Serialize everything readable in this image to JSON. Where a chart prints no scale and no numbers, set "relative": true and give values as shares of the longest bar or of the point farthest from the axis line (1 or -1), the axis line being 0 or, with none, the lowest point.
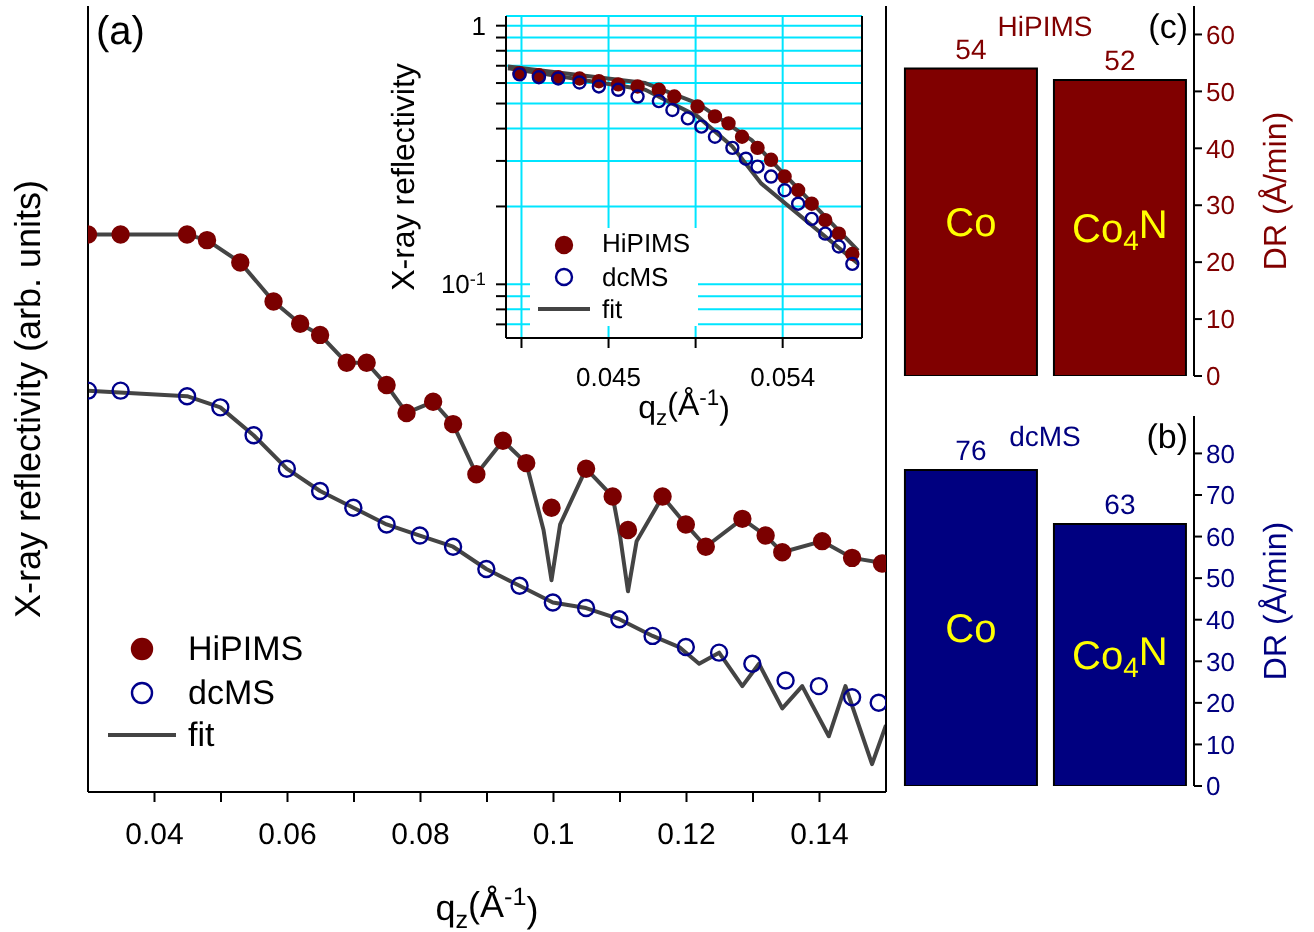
{
  "chart_data": [
    {
      "type": "scatter",
      "relative": true,
      "xlabel": "q$_{z}$(Å$^{-1}$)",
      "ylabel": "X-ray reflectivity (arb. units)",
      "xlim": [
        0.03,
        0.15
      ],
      "xticks": [
        0.04,
        {
          "value": 0.05,
          "label": null
        },
        0.06,
        {
          "value": 0.07,
          "label": null
        },
        0.08,
        {
          "value": 0.09,
          "label": null
        },
        0.1,
        {
          "value": 0.11,
          "label": null
        },
        0.12,
        {
          "value": 0.13,
          "label": null
        },
        0.14
      ],
      "tick_labels": "x",
      "marker": "circle",
      "legend": "bottom left",
      "annotations": [
        "(a)"
      ],
      "series": [
        {
          "name": "HiPIMS",
          "color": "#7b0000",
          "x": [
            0.03,
            0.0349,
            0.0449,
            0.0479,
            0.0529,
            0.0579,
            0.0619,
            0.0649,
            0.0689,
            0.0719,
            0.0749,
            0.0779,
            0.0819,
            0.0849,
            0.0884,
            0.0924,
            0.0959,
            0.0997,
            0.1049,
            0.1089,
            0.1112,
            0.1164,
            0.1199,
            0.1229,
            0.1284,
            0.1319,
            0.1344,
            0.1404,
            0.1449,
            0.1494
          ],
          "values": [
            1.0,
            1.0,
            1.0,
            0.99,
            0.95,
            0.88,
            0.84,
            0.82,
            0.77,
            0.77,
            0.73,
            0.68,
            0.7,
            0.66,
            0.57,
            0.63,
            0.59,
            0.51,
            0.58,
            0.53,
            0.47,
            0.53,
            0.48,
            0.44,
            0.49,
            0.46,
            0.43,
            0.45,
            0.42,
            0.41
          ]
        },
        {
          "name": "dcMS",
          "color": "#00008b",
          "x": [
            0.03,
            0.0349,
            0.0449,
            0.0499,
            0.0549,
            0.0599,
            0.0649,
            0.0699,
            0.0749,
            0.0799,
            0.0849,
            0.0899,
            0.0949,
            0.0999,
            0.1049,
            0.1099,
            0.1149,
            0.1199,
            0.1249,
            0.1299,
            0.1349,
            0.1399,
            0.1449,
            0.1489
          ],
          "values": [
            0.72,
            0.72,
            0.71,
            0.69,
            0.64,
            0.58,
            0.54,
            0.51,
            0.48,
            0.46,
            0.44,
            0.4,
            0.37,
            0.34,
            0.33,
            0.31,
            0.28,
            0.26,
            0.25,
            0.23,
            0.2,
            0.19,
            0.17,
            0.16
          ]
        },
        {
          "name": "fit",
          "type": "line",
          "marker": "none",
          "color": "#444444",
          "x": [
            0.03,
            0.0449,
            0.0479,
            0.0529,
            0.0579,
            0.0619,
            0.0649,
            0.0689,
            0.0719,
            0.0749,
            0.0779,
            0.0819,
            0.0849,
            0.0884,
            0.0924,
            0.0959,
            0.0985,
            0.0997,
            0.101,
            0.1049,
            0.1089,
            0.11,
            0.1112,
            0.1125,
            0.1164,
            0.1199,
            0.1229,
            0.1284,
            0.1319,
            0.1344,
            0.1404,
            0.1449,
            0.15
          ],
          "values": [
            1.0,
            1.0,
            0.99,
            0.95,
            0.88,
            0.84,
            0.82,
            0.77,
            0.77,
            0.73,
            0.68,
            0.7,
            0.66,
            0.57,
            0.63,
            0.59,
            0.47,
            0.38,
            0.48,
            0.58,
            0.53,
            0.46,
            0.36,
            0.45,
            0.53,
            0.48,
            0.44,
            0.49,
            0.46,
            0.43,
            0.45,
            0.42,
            0.41
          ]
        },
        {
          "type": "line",
          "marker": "none",
          "color": "#444444",
          "x": [
            0.03,
            0.0449,
            0.0499,
            0.0549,
            0.0599,
            0.0649,
            0.0699,
            0.0749,
            0.0799,
            0.0849,
            0.0899,
            0.0949,
            0.0999,
            0.1049,
            0.1099,
            0.1149,
            0.1189,
            0.1219,
            0.1249,
            0.1284,
            0.1309,
            0.1344,
            0.1374,
            0.1414,
            0.1439,
            0.1479,
            0.15
          ],
          "values": [
            0.72,
            0.71,
            0.69,
            0.64,
            0.58,
            0.54,
            0.51,
            0.48,
            0.46,
            0.44,
            0.4,
            0.37,
            0.34,
            0.33,
            0.31,
            0.28,
            0.26,
            0.23,
            0.25,
            0.19,
            0.23,
            0.15,
            0.19,
            0.1,
            0.19,
            0.05,
            0.12
          ]
        }
      ]
    },
    {
      "type": "scatter",
      "log": "y",
      "xlabel": "q$_{z}$(Å$^{-1}$)",
      "ylabel": "X-ray reflectivity",
      "xlim": [
        0.0397,
        0.0581
      ],
      "xticks": [
        {
          "value": 0.0405,
          "label": null
        },
        0.045,
        {
          "value": 0.0495,
          "label": null
        },
        0.054
      ],
      "ylim": [
        0.062,
        1.09
      ],
      "yticks": [
        {
          "value": 0.07,
          "label": null
        },
        {
          "value": 0.08,
          "label": null
        },
        {
          "value": 0.09,
          "label": null
        },
        {
          "value": 0.1,
          "label": "10$^{-1}$"
        },
        {
          "value": 0.2,
          "label": null
        },
        {
          "value": 0.3,
          "label": null
        },
        {
          "value": 0.4,
          "label": null
        },
        {
          "value": 0.5,
          "label": null
        },
        {
          "value": 0.6,
          "label": null
        },
        {
          "value": 0.7,
          "label": null
        },
        {
          "value": 0.8,
          "label": null
        },
        {
          "value": 0.9,
          "label": null
        },
        1
      ],
      "grid": true,
      "marker": "circle",
      "legend": "bottom left",
      "series": [
        {
          "name": "HiPIMS",
          "color": "#7b0000",
          "x": [
            0.0404,
            0.0414,
            0.0424,
            0.0435,
            0.0445,
            0.0455,
            0.0465,
            0.0476,
            0.0484,
            0.0496,
            0.0505,
            0.0512,
            0.0519,
            0.0527,
            0.0534,
            0.0541,
            0.0548,
            0.0555,
            0.0562,
            0.0569,
            0.0576
          ],
          "values": [
            0.655,
            0.643,
            0.632,
            0.625,
            0.61,
            0.593,
            0.582,
            0.565,
            0.532,
            0.487,
            0.446,
            0.419,
            0.372,
            0.337,
            0.303,
            0.261,
            0.231,
            0.205,
            0.177,
            0.157,
            0.131
          ]
        },
        {
          "name": "dcMS",
          "color": "#00008b",
          "x": [
            0.0404,
            0.0414,
            0.0424,
            0.0435,
            0.0445,
            0.0455,
            0.0465,
            0.0476,
            0.0483,
            0.0491,
            0.0498,
            0.0505,
            0.0514,
            0.0521,
            0.0527,
            0.0534,
            0.0541,
            0.0548,
            0.0555,
            0.0562,
            0.0569,
            0.0576
          ],
          "values": [
            0.648,
            0.632,
            0.625,
            0.603,
            0.582,
            0.565,
            0.532,
            0.511,
            0.472,
            0.438,
            0.407,
            0.372,
            0.337,
            0.306,
            0.285,
            0.261,
            0.231,
            0.205,
            0.179,
            0.157,
            0.14,
            0.12
          ]
        },
        {
          "name": "fit",
          "type": "line",
          "marker": "none",
          "color": "#444444",
          "x": [
            0.0398,
            0.0469,
            0.0496,
            0.0524,
            0.0537,
            0.0579
          ],
          "values": [
            0.696,
            0.6,
            0.501,
            0.361,
            0.285,
            0.135
          ]
        },
        {
          "type": "line",
          "marker": "none",
          "color": "#444444",
          "x": [
            0.0398,
            0.0469,
            0.0496,
            0.0514,
            0.0529,
            0.0579
          ],
          "values": [
            0.684,
            0.565,
            0.446,
            0.341,
            0.245,
            0.12
          ]
        }
      ]
    },
    {
      "type": "bar",
      "title": "HiPIMS",
      "categories": [
        "Co",
        "Co$_{4}$N"
      ],
      "series": [
        {
          "color": "#800000",
          "values": [
            54,
            52
          ]
        }
      ],
      "ylim": [
        0,
        65
      ],
      "yticks": [
        0,
        10,
        20,
        30,
        40,
        50,
        60
      ],
      "ylabel": "DR (Å/min)",
      "data_labels": true,
      "annotations": [
        "(c)"
      ]
    },
    {
      "type": "bar",
      "title": "dcMS",
      "categories": [
        "Co",
        "Co$_{4}$N"
      ],
      "series": [
        {
          "color": "#000080",
          "values": [
            76,
            63
          ]
        }
      ],
      "ylim": [
        0,
        89
      ],
      "yticks": [
        0,
        10,
        20,
        30,
        40,
        50,
        60,
        70,
        80
      ],
      "ylabel": "DR (Å/min)",
      "data_labels": true,
      "annotations": [
        "(b)"
      ]
    }
  ]
}
